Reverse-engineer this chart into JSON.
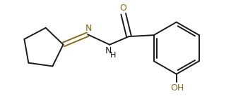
{
  "bg_color": "#ffffff",
  "bond_color": "#1a1a1a",
  "atom_color": "#1a1a1a",
  "N_color": "#8B6914",
  "O_color": "#8B6914",
  "line_width": 1.4,
  "figsize": [
    3.27,
    1.37
  ],
  "dpi": 100,
  "xlim": [
    0,
    327
  ],
  "ylim": [
    0,
    137
  ]
}
